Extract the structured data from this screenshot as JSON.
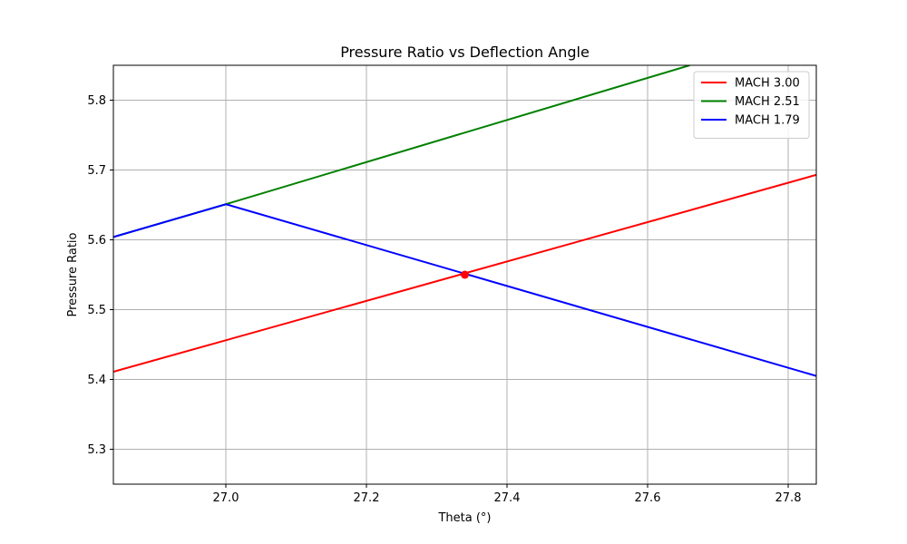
{
  "chart_data": {
    "type": "line",
    "title": "Pressure Ratio vs Deflection Angle",
    "xlabel": "Theta (°)",
    "ylabel": "Pressure Ratio",
    "xlim": [
      26.84,
      27.84
    ],
    "ylim": [
      5.25,
      5.85
    ],
    "xticks": [
      27.0,
      27.2,
      27.4,
      27.6,
      27.8
    ],
    "xtick_labels": [
      "27.0",
      "27.2",
      "27.4",
      "27.6",
      "27.8"
    ],
    "yticks": [
      5.3,
      5.4,
      5.5,
      5.6,
      5.7,
      5.8
    ],
    "ytick_labels": [
      "5.3",
      "5.4",
      "5.5",
      "5.6",
      "5.7",
      "5.8"
    ],
    "grid": true,
    "legend_position": "top-right",
    "series": [
      {
        "name": "MACH 3.00",
        "color": "#ff0000",
        "points": [
          [
            26.84,
            5.411
          ],
          [
            27.84,
            5.693
          ]
        ]
      },
      {
        "name": "MACH 2.51",
        "color": "#008000",
        "points": [
          [
            26.84,
            5.604
          ],
          [
            27.0,
            5.651
          ],
          [
            27.66,
            5.85
          ]
        ]
      },
      {
        "name": "MACH 1.79",
        "color": "#0000ff",
        "points": [
          [
            26.84,
            5.604
          ],
          [
            27.0,
            5.651
          ],
          [
            27.84,
            5.405
          ]
        ]
      }
    ],
    "markers": [
      {
        "x": 27.34,
        "y": 5.55,
        "color": "#ff0000"
      }
    ]
  }
}
